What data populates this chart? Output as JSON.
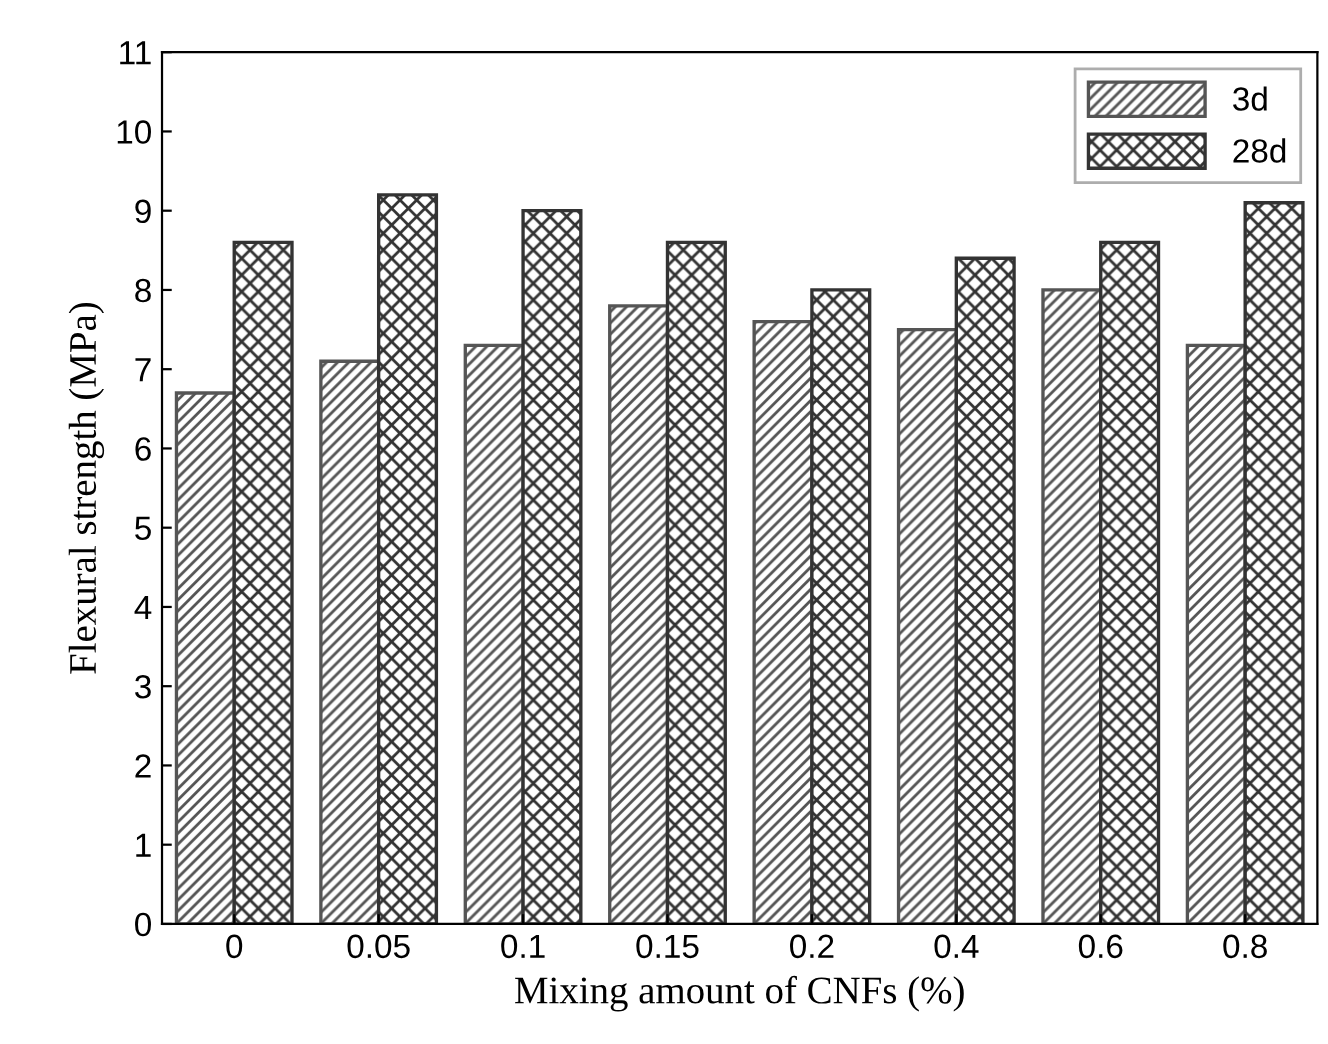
{
  "chart_data": {
    "type": "bar",
    "xlabel": "Mixing amount of CNFs (%)",
    "ylabel": "Flexural strength (MPa)",
    "categories": [
      "0",
      "0.05",
      "0.1",
      "0.15",
      "0.2",
      "0.4",
      "0.6",
      "0.8"
    ],
    "series": [
      {
        "name": "3d",
        "color": "#555555",
        "values": [
          6.7,
          7.1,
          7.3,
          7.8,
          7.6,
          7.5,
          8.0,
          7.3
        ]
      },
      {
        "name": "28d",
        "color": "#333333",
        "values": [
          8.6,
          9.2,
          9.0,
          8.6,
          8.0,
          8.4,
          8.6,
          9.1
        ]
      }
    ],
    "ylim": [
      0,
      11
    ],
    "yticks": [
      0,
      1,
      2,
      3,
      4,
      5,
      6,
      7,
      8,
      9,
      10,
      11
    ],
    "grid": false,
    "legend": "top right"
  }
}
